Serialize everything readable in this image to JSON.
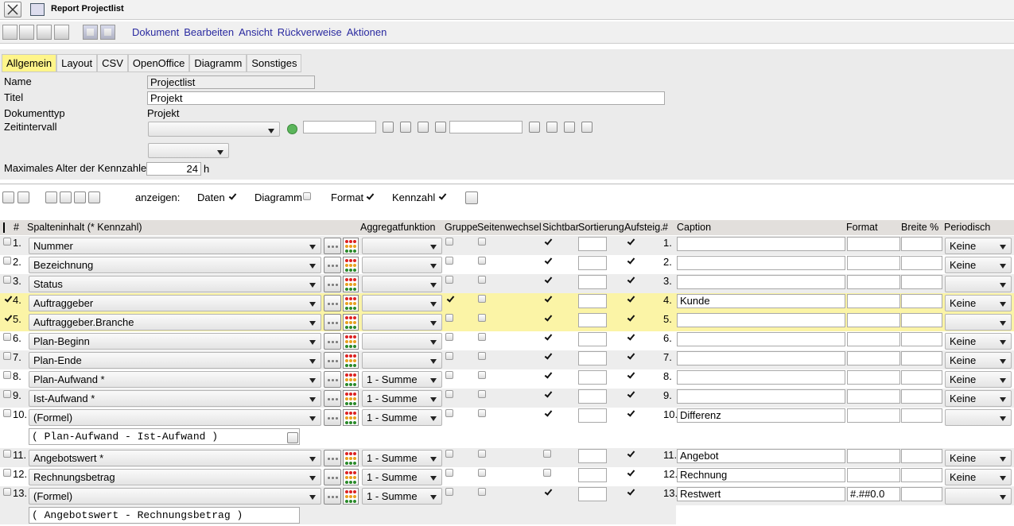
{
  "header": {
    "title": "Report Projectlist"
  },
  "menu": [
    "Dokument",
    "Bearbeiten",
    "Ansicht",
    "Rückverweise",
    "Aktionen"
  ],
  "tabs": [
    "Allgemein",
    "Layout",
    "CSV",
    "OpenOffice",
    "Diagramm",
    "Sonstiges"
  ],
  "form": {
    "name_label": "Name",
    "name": "Projectlist",
    "title_label": "Titel",
    "title": "Projekt",
    "doctype_label": "Dokumenttyp",
    "doctype": "Projekt",
    "interval_label": "Zeitintervall",
    "maxage_label": "Maximales Alter der Kennzahlen",
    "maxage": "24",
    "maxage_unit": "h"
  },
  "display": {
    "label": "anzeigen:",
    "options": [
      {
        "name": "Daten",
        "checked": true
      },
      {
        "name": "Diagramm",
        "checked": false
      },
      {
        "name": "Format",
        "checked": true
      },
      {
        "name": "Kennzahl",
        "checked": true
      }
    ]
  },
  "table": {
    "headers": [
      "#",
      "Spalteninhalt (* Kennzahl)",
      "Aggregatfunktion",
      "Gruppe",
      "Seitenwechsel",
      "Sichtbar",
      "Sortierung",
      "Aufsteig.",
      "#",
      "Caption",
      "Format",
      "Breite %",
      "Periodisch"
    ],
    "rows": [
      {
        "num": "1.",
        "content": "Nummer",
        "group": false,
        "pagebreak": false,
        "visible": true,
        "ascending": true,
        "periodic": "Keine",
        "selected": false
      },
      {
        "num": "2.",
        "content": "Bezeichnung",
        "group": false,
        "pagebreak": false,
        "visible": true,
        "ascending": true,
        "periodic": "Keine",
        "selected": false
      },
      {
        "num": "3.",
        "content": "Status",
        "group": false,
        "pagebreak": false,
        "visible": true,
        "ascending": true,
        "selected": false
      },
      {
        "num": "4.",
        "content": "Auftraggeber",
        "group": true,
        "pagebreak": false,
        "visible": true,
        "ascending": true,
        "caption": "Kunde",
        "periodic": "Keine",
        "selected": true
      },
      {
        "num": "5.",
        "content": "Auftraggeber.Branche",
        "group": false,
        "pagebreak": false,
        "visible": true,
        "ascending": true,
        "selected": true
      },
      {
        "num": "6.",
        "content": "Plan-Beginn",
        "group": false,
        "pagebreak": false,
        "visible": true,
        "ascending": true,
        "periodic": "Keine",
        "selected": false
      },
      {
        "num": "7.",
        "content": "Plan-Ende",
        "group": false,
        "pagebreak": false,
        "visible": true,
        "ascending": true,
        "periodic": "Keine",
        "selected": false
      },
      {
        "num": "8.",
        "content": "Plan-Aufwand *",
        "aggregate": "1 - Summe",
        "group": false,
        "pagebreak": false,
        "visible": true,
        "ascending": true,
        "periodic": "Keine",
        "selected": false
      },
      {
        "num": "9.",
        "content": "Ist-Aufwand *",
        "aggregate": "1 - Summe",
        "group": false,
        "pagebreak": false,
        "visible": true,
        "ascending": true,
        "periodic": "Keine",
        "selected": false
      },
      {
        "num": "10.",
        "content": "(Formel)",
        "aggregate": "1 - Summe",
        "group": false,
        "pagebreak": false,
        "visible": true,
        "ascending": true,
        "caption": "Differenz",
        "selected": false,
        "formula": "( Plan-Aufwand - Ist-Aufwand )"
      },
      {
        "num": "11.",
        "content": "Angebotswert *",
        "aggregate": "1 - Summe",
        "group": false,
        "pagebreak": false,
        "visible": false,
        "ascending": true,
        "caption": "Angebot",
        "periodic": "Keine",
        "selected": false
      },
      {
        "num": "12.",
        "content": "Rechnungsbetrag",
        "aggregate": "1 - Summe",
        "group": false,
        "pagebreak": false,
        "visible": false,
        "ascending": true,
        "caption": "Rechnung",
        "periodic": "Keine",
        "selected": false
      },
      {
        "num": "13.",
        "content": "(Formel)",
        "aggregate": "1 - Summe",
        "group": false,
        "pagebreak": false,
        "visible": true,
        "ascending": true,
        "caption": "Restwert",
        "format": "#.##0.0",
        "selected": false,
        "formula": "( Angebotswert - Rechnungsbetrag )"
      }
    ]
  }
}
